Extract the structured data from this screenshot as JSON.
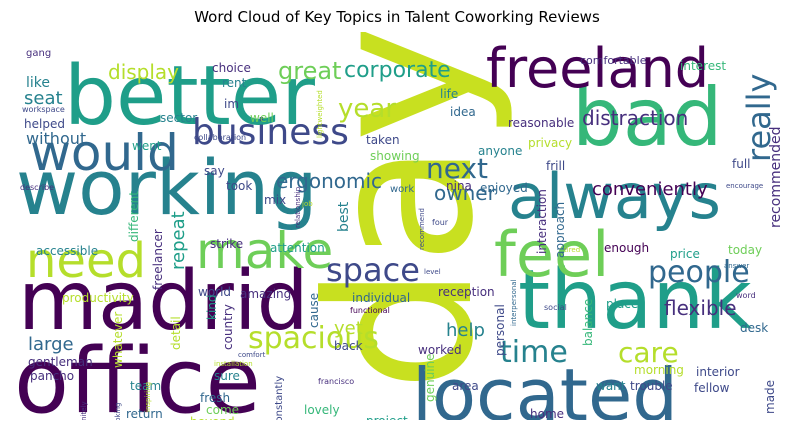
{
  "chart_data": {
    "type": "wordcloud",
    "title": "Word Cloud of Key Topics in Talent Coworking Reviews",
    "colors": {
      "purple": "#440154",
      "indigo": "#472f7d",
      "blue": "#3e4989",
      "steel": "#31688e",
      "teal": "#26828e",
      "sea": "#1f9e89",
      "green": "#35b779",
      "lime": "#6ece58",
      "yellowgreen": "#b5de2b",
      "yellow": "#c8e020"
    },
    "words": [
      {
        "text": "day",
        "color": "yellow",
        "size": "xxl"
      },
      {
        "text": "office",
        "color": "purple",
        "size": "xl"
      },
      {
        "text": "working",
        "color": "teal",
        "size": "xl"
      },
      {
        "text": "better",
        "color": "sea",
        "size": "xl"
      },
      {
        "text": "madrid",
        "color": "purple",
        "size": "xl"
      },
      {
        "text": "thank",
        "color": "sea",
        "size": "xl"
      },
      {
        "text": "located",
        "color": "steel",
        "size": "xl"
      },
      {
        "text": "bad",
        "color": "green",
        "size": "xl"
      },
      {
        "text": "always",
        "color": "teal",
        "size": "l"
      },
      {
        "text": "freeland",
        "color": "purple",
        "size": "l"
      },
      {
        "text": "feel",
        "color": "lime",
        "size": "l"
      },
      {
        "text": "would",
        "color": "steel",
        "size": "l"
      },
      {
        "text": "make",
        "color": "lime",
        "size": "l"
      },
      {
        "text": "need",
        "color": "yellowgreen",
        "size": "l"
      },
      {
        "text": "business",
        "color": "blue",
        "size": "m"
      },
      {
        "text": "space",
        "color": "blue",
        "size": "m"
      },
      {
        "text": "spacious",
        "color": "yellowgreen",
        "size": "m"
      },
      {
        "text": "really",
        "color": "steel",
        "size": "m"
      },
      {
        "text": "year",
        "color": "yellowgreen",
        "size": "m"
      },
      {
        "text": "people",
        "color": "steel",
        "size": "m"
      },
      {
        "text": "time",
        "color": "teal",
        "size": "m"
      },
      {
        "text": "care",
        "color": "yellowgreen",
        "size": "m"
      },
      {
        "text": "next",
        "color": "steel",
        "size": "m"
      },
      {
        "text": "great",
        "color": "lime",
        "size": "s"
      },
      {
        "text": "corporate",
        "color": "sea",
        "size": "s"
      },
      {
        "text": "display",
        "color": "yellowgreen",
        "size": "s"
      },
      {
        "text": "ergonomic",
        "color": "steel",
        "size": "s"
      },
      {
        "text": "conveniently",
        "color": "purple",
        "size": "s"
      },
      {
        "text": "distraction",
        "color": "indigo",
        "size": "s"
      },
      {
        "text": "owner",
        "color": "steel",
        "size": "s"
      },
      {
        "text": "flexible",
        "color": "indigo",
        "size": "s"
      },
      {
        "text": "large",
        "color": "steel",
        "size": "s"
      },
      {
        "text": "repeat",
        "color": "sea",
        "size": "s"
      },
      {
        "text": "help",
        "color": "teal",
        "size": "s"
      },
      {
        "text": "yet",
        "color": "yellowgreen",
        "size": "s"
      },
      {
        "text": "recommended",
        "color": "indigo",
        "size": "s"
      },
      {
        "text": "seat",
        "color": "teal",
        "size": "s"
      },
      {
        "text": "without",
        "color": "steel",
        "size": "s"
      },
      {
        "text": "like",
        "color": "teal",
        "size": "xs"
      },
      {
        "text": "gang",
        "color": "indigo",
        "size": "xxs"
      },
      {
        "text": "workspace",
        "color": "blue",
        "size": "xxxs"
      },
      {
        "text": "helped",
        "color": "blue",
        "size": "xs"
      },
      {
        "text": "choice",
        "color": "indigo",
        "size": "xs"
      },
      {
        "text": "rent",
        "color": "teal",
        "size": "xs"
      },
      {
        "text": "im",
        "color": "blue",
        "size": "xs"
      },
      {
        "text": "sector",
        "color": "teal",
        "size": "xs"
      },
      {
        "text": "well",
        "color": "lime",
        "size": "xs"
      },
      {
        "text": "life",
        "color": "teal",
        "size": "xs"
      },
      {
        "text": "taken",
        "color": "blue",
        "size": "xs"
      },
      {
        "text": "idea",
        "color": "steel",
        "size": "xs"
      },
      {
        "text": "lightweighted",
        "color": "yellowgreen",
        "size": "xxxs"
      },
      {
        "text": "comfortable",
        "color": "indigo",
        "size": "xxs"
      },
      {
        "text": "interest",
        "color": "green",
        "size": "xs"
      },
      {
        "text": "reasonable",
        "color": "indigo",
        "size": "xs"
      },
      {
        "text": "privacy",
        "color": "yellowgreen",
        "size": "xs"
      },
      {
        "text": "frill",
        "color": "blue",
        "size": "xs"
      },
      {
        "text": "full",
        "color": "blue",
        "size": "xs"
      },
      {
        "text": "showing",
        "color": "lime",
        "size": "xs"
      },
      {
        "text": "anyone",
        "color": "teal",
        "size": "xs"
      },
      {
        "text": "went",
        "color": "sea",
        "size": "xs"
      },
      {
        "text": "collaboration",
        "color": "blue",
        "size": "xxxs"
      },
      {
        "text": "say",
        "color": "blue",
        "size": "xs"
      },
      {
        "text": "took",
        "color": "blue",
        "size": "xs"
      },
      {
        "text": "mix",
        "color": "blue",
        "size": "xs"
      },
      {
        "text": "nina",
        "color": "indigo",
        "size": "xs"
      },
      {
        "text": "work",
        "color": "steel",
        "size": "xxs"
      },
      {
        "text": "enjoyed",
        "color": "steel",
        "size": "xs"
      },
      {
        "text": "approach",
        "color": "steel",
        "size": "xs"
      },
      {
        "text": "interaction",
        "color": "indigo",
        "size": "xs"
      },
      {
        "text": "encourage",
        "color": "blue",
        "size": "xxxs"
      },
      {
        "text": "describe",
        "color": "indigo",
        "size": "xxxs"
      },
      {
        "text": "different",
        "color": "green",
        "size": "xs"
      },
      {
        "text": "freelancer",
        "color": "indigo",
        "size": "xs"
      },
      {
        "text": "relationship",
        "color": "indigo",
        "size": "xxxs"
      },
      {
        "text": "job",
        "color": "yellowgreen",
        "size": "xxxs"
      },
      {
        "text": "best",
        "color": "teal",
        "size": "xs"
      },
      {
        "text": "four",
        "color": "blue",
        "size": "xxxs"
      },
      {
        "text": "accessible",
        "color": "teal",
        "size": "xs"
      },
      {
        "text": "strike",
        "color": "indigo",
        "size": "xs"
      },
      {
        "text": "attention",
        "color": "sea",
        "size": "xs"
      },
      {
        "text": "enough",
        "color": "purple",
        "size": "xs"
      },
      {
        "text": "tired",
        "color": "yellowgreen",
        "size": "xxxs"
      },
      {
        "text": "recommend",
        "color": "blue",
        "size": "xxxs"
      },
      {
        "text": "price",
        "color": "sea",
        "size": "xs"
      },
      {
        "text": "today",
        "color": "lime",
        "size": "xs"
      },
      {
        "text": "answer",
        "color": "steel",
        "size": "xxxs"
      },
      {
        "text": "productivity",
        "color": "yellowgreen",
        "size": "xs"
      },
      {
        "text": "whatever",
        "color": "yellowgreen",
        "size": "xs"
      },
      {
        "text": "world",
        "color": "blue",
        "size": "xs"
      },
      {
        "text": "amazing",
        "color": "indigo",
        "size": "xs"
      },
      {
        "text": "individual",
        "color": "steel",
        "size": "xs"
      },
      {
        "text": "reception",
        "color": "indigo",
        "size": "xs"
      },
      {
        "text": "level",
        "color": "blue",
        "size": "xxxs"
      },
      {
        "text": "personal",
        "color": "blue",
        "size": "xxs"
      },
      {
        "text": "interpersonal",
        "color": "steel",
        "size": "xxxs"
      },
      {
        "text": "place",
        "color": "sea",
        "size": "xs"
      },
      {
        "text": "desk",
        "color": "steel",
        "size": "xs"
      },
      {
        "text": "word",
        "color": "indigo",
        "size": "xxxs"
      },
      {
        "text": "social",
        "color": "blue",
        "size": "xxxs"
      },
      {
        "text": "detail",
        "color": "yellowgreen",
        "size": "xs"
      },
      {
        "text": "kind",
        "color": "sea",
        "size": "xs"
      },
      {
        "text": "country",
        "color": "indigo",
        "size": "xs"
      },
      {
        "text": "cause",
        "color": "steel",
        "size": "xs"
      },
      {
        "text": "functional",
        "color": "purple",
        "size": "xxs"
      },
      {
        "text": "back",
        "color": "blue",
        "size": "xs"
      },
      {
        "text": "worked",
        "color": "indigo",
        "size": "xs"
      },
      {
        "text": "balance",
        "color": "green",
        "size": "xs"
      },
      {
        "text": "interior",
        "color": "blue",
        "size": "xs"
      },
      {
        "text": "morning",
        "color": "yellowgreen",
        "size": "xs"
      },
      {
        "text": "want",
        "color": "teal",
        "size": "xs"
      },
      {
        "text": "fellow",
        "color": "blue",
        "size": "xs"
      },
      {
        "text": "gentleman",
        "color": "indigo",
        "size": "xs"
      },
      {
        "text": "installation",
        "color": "yellowgreen",
        "size": "xxxs"
      },
      {
        "text": "comfort",
        "color": "blue",
        "size": "xxxs"
      },
      {
        "text": "francisco",
        "color": "indigo",
        "size": "xxxs"
      },
      {
        "text": "genuine",
        "color": "lime",
        "size": "xs"
      },
      {
        "text": "area",
        "color": "blue",
        "size": "xs"
      },
      {
        "text": "trouble",
        "color": "blue",
        "size": "xs"
      },
      {
        "text": "made",
        "color": "blue",
        "size": "xs"
      },
      {
        "text": "pancho",
        "color": "indigo",
        "size": "xs"
      },
      {
        "text": "sure",
        "color": "teal",
        "size": "xs"
      },
      {
        "text": "team",
        "color": "teal",
        "size": "xs"
      },
      {
        "text": "fresh",
        "color": "steel",
        "size": "xs"
      },
      {
        "text": "come",
        "color": "lime",
        "size": "xs"
      },
      {
        "text": "lovely",
        "color": "green",
        "size": "xs"
      },
      {
        "text": "project",
        "color": "sea",
        "size": "xs"
      },
      {
        "text": "home",
        "color": "indigo",
        "size": "xs"
      },
      {
        "text": "return",
        "color": "steel",
        "size": "xs"
      },
      {
        "text": "inspiring",
        "color": "yellowgreen",
        "size": "xxxs"
      },
      {
        "text": "beyond",
        "color": "yellowgreen",
        "size": "xs"
      },
      {
        "text": "constantly",
        "color": "blue",
        "size": "xxs"
      },
      {
        "text": "huge",
        "color": "indigo",
        "size": "xs"
      },
      {
        "text": "looking",
        "color": "blue",
        "size": "xxxs"
      },
      {
        "text": "definitely",
        "color": "indigo",
        "size": "xxxs"
      },
      {
        "text": "new",
        "color": "steel",
        "size": "xxxs"
      },
      {
        "text": "take",
        "color": "blue",
        "size": "xxxs"
      }
    ]
  }
}
